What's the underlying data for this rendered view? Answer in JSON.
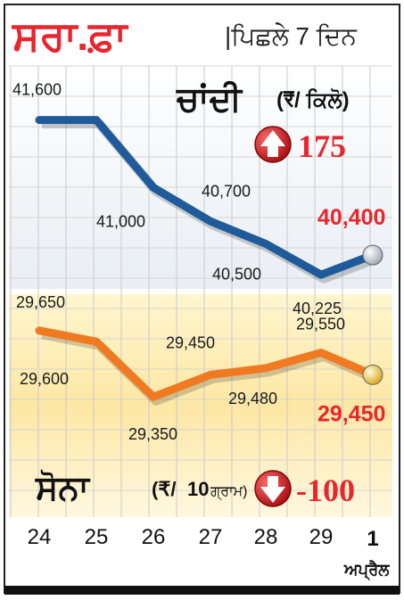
{
  "header": {
    "title": "ਸਰਾ.ਫ਼ਾ",
    "subtitle": "|ਪਿਛਲੇ 7 ਦਿਨ"
  },
  "silver": {
    "label": "ਚਾਂਦੀ",
    "unit": "(₹/ ਕਿਲੋ)",
    "change": "175",
    "change_direction": "up",
    "latest": "40,400",
    "line_color": "#1f5a9a"
  },
  "gold": {
    "label": "ਸੋਨਾ",
    "unit_prefix": "(₹/",
    "unit_num": "10",
    "unit_suffix": "ਗ੍ਰਾਮ)",
    "change": "-100",
    "change_direction": "down",
    "latest": "29,450",
    "line_color": "#f07a22"
  },
  "accent_color": "#e8262e",
  "month_label": "ਅਪ੍ਰੈਲ",
  "chart_data": {
    "type": "line",
    "x": [
      "24",
      "25",
      "26",
      "27",
      "28",
      "29",
      "1"
    ],
    "grid": true,
    "series": [
      {
        "name": "ਚਾਂਦੀ",
        "values": [
          41600,
          41600,
          41000,
          40700,
          40500,
          40225,
          40400
        ],
        "labels": [
          "41,600",
          "",
          "41,000",
          "40,700",
          "40,500",
          "40,225",
          "40,400"
        ]
      },
      {
        "name": "ਸੋਨਾ",
        "values": [
          29650,
          29600,
          29350,
          29450,
          29480,
          29550,
          29450
        ],
        "labels": [
          "29,650",
          "29,600",
          "29,350",
          "29,450",
          "29,480",
          "29,550",
          "29,450"
        ]
      }
    ]
  }
}
